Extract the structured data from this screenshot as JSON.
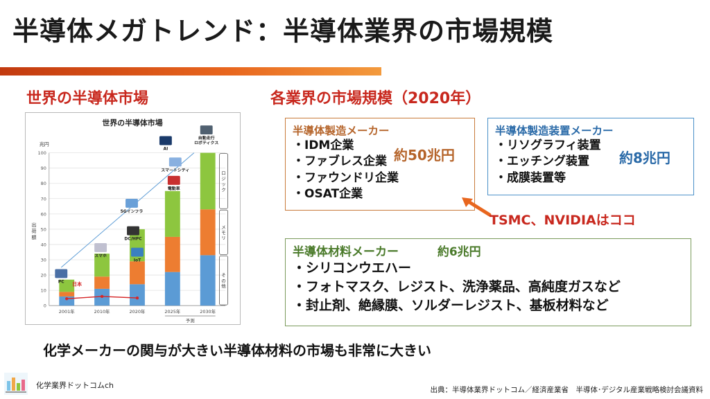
{
  "title": "半導体メガトレンド：半導体業界の市場規模",
  "left_heading": "世界の半導体市場",
  "right_heading": "各業界の市場規模（2020年）",
  "chart_data": {
    "type": "bar",
    "title": "世界の半導体市場",
    "ylabel": "出荷額",
    "yunit": "兆円",
    "ylim": [
      0,
      100
    ],
    "yticks": [
      0,
      10,
      20,
      30,
      40,
      50,
      60,
      70,
      80,
      90,
      100
    ],
    "categories": [
      "2001年",
      "2010年",
      "2020年",
      "2025年",
      "2030年"
    ],
    "forecast_label": "予測",
    "series": [
      {
        "name": "その他",
        "color": "#5b9bd5",
        "values": [
          6,
          11,
          14,
          22,
          33
        ]
      },
      {
        "name": "メモリ",
        "color": "#ed7d31",
        "values": [
          3,
          8,
          15,
          23,
          30
        ]
      },
      {
        "name": "ロジック",
        "color": "#8dc63f",
        "values": [
          8,
          15,
          21,
          30,
          37
        ]
      }
    ],
    "japan_line": {
      "name": "日本",
      "color": "#d62728",
      "values": [
        4.5,
        6,
        5
      ]
    },
    "bracket_labels": [
      "ロジック",
      "メモリ",
      "その他"
    ],
    "annotations": [
      "PC",
      "スマホ",
      "5Gインフラ",
      "DC/HPC",
      "IoT",
      "AI",
      "スマートシティ",
      "電動車",
      "自動走行\nロボティクス"
    ]
  },
  "maker_box": {
    "heading": "半導体製造メーカー",
    "items": [
      "・IDM企業",
      "・ファブレス企業",
      "・ファウンドリ企業",
      "・OSAT企業"
    ],
    "amount": "約50兆円"
  },
  "equip_box": {
    "heading": "半導体製造装置メーカー",
    "items": [
      "・リソグラフィ装置",
      "・エッチング装置",
      "・成膜装置等"
    ],
    "amount": "約8兆円"
  },
  "tsmc_note": "TSMC、NVIDIAはココ",
  "material_box": {
    "heading": "半導体材料メーカー",
    "amount": "約6兆円",
    "items": [
      "・シリコンウエハー",
      "・フォトマスク、レジスト、洗浄薬品、高純度ガスなど",
      "・封止剤、絶縁膜、ソルダーレジスト、基板材料など"
    ]
  },
  "bottom_message": "化学メーカーの関与が大きい半導体材料の市場も非常に大きい",
  "brand": "化学業界ドットコムch",
  "source": "出典：半導体業界ドットコム／経済産業省　半導体･デジタル産業戦略検討会議資料",
  "colors": {
    "accent_red": "#c8281e",
    "orange": "#e8661e",
    "blue": "#2a6aa8",
    "green": "#4a7a2a"
  }
}
